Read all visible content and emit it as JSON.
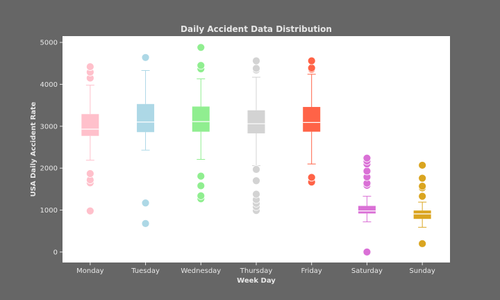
{
  "chart_data": {
    "type": "box",
    "title": "Daily Accident Data Distribution",
    "xlabel": "Week Day",
    "ylabel": "USA Daily Accident Rate",
    "ylim": [
      -250,
      5150
    ],
    "yticks": [
      0,
      1000,
      2000,
      3000,
      4000,
      5000
    ],
    "grid": false,
    "legend": "none",
    "categories": [
      "Monday",
      "Tuesday",
      "Wednesday",
      "Thursday",
      "Friday",
      "Saturday",
      "Sunday"
    ],
    "series": [
      {
        "category": "Monday",
        "color": "#ffc0cb",
        "whisker_low": 2190,
        "q1": 2770,
        "median": 2930,
        "q3": 3290,
        "whisker_high": 3980,
        "outliers": [
          980,
          1650,
          1720,
          1870,
          4150,
          4290,
          4420
        ]
      },
      {
        "category": "Tuesday",
        "color": "#add8e6",
        "whisker_low": 2430,
        "q1": 2860,
        "median": 3100,
        "q3": 3530,
        "whisker_high": 4330,
        "outliers": [
          680,
          1170,
          4640
        ]
      },
      {
        "category": "Wednesday",
        "color": "#90ee90",
        "whisker_low": 2210,
        "q1": 2870,
        "median": 3110,
        "q3": 3470,
        "whisker_high": 4130,
        "outliers": [
          1270,
          1340,
          1580,
          1810,
          4370,
          4450,
          4880
        ]
      },
      {
        "category": "Thursday",
        "color": "#d3d3d3",
        "whisker_low": 2060,
        "q1": 2830,
        "median": 3060,
        "q3": 3380,
        "whisker_high": 4170,
        "outliers": [
          990,
          1080,
          1160,
          1250,
          1380,
          1700,
          1970,
          4340,
          4380,
          4560
        ]
      },
      {
        "category": "Friday",
        "color": "#ff6347",
        "whisker_low": 2100,
        "q1": 2870,
        "median": 3090,
        "q3": 3460,
        "whisker_high": 4240,
        "outliers": [
          1670,
          1780,
          4360,
          4390,
          4560
        ]
      },
      {
        "category": "Saturday",
        "color": "#da70d6",
        "whisker_low": 720,
        "q1": 920,
        "median": 980,
        "q3": 1100,
        "whisker_high": 1330,
        "outliers": [
          0,
          1590,
          1640,
          1790,
          1930,
          2100,
          2170,
          2240
        ]
      },
      {
        "category": "Sunday",
        "color": "#daa520",
        "whisker_low": 590,
        "q1": 790,
        "median": 910,
        "q3": 990,
        "whisker_high": 1190,
        "outliers": [
          200,
          1330,
          1530,
          1570,
          1760,
          2070
        ]
      }
    ]
  }
}
